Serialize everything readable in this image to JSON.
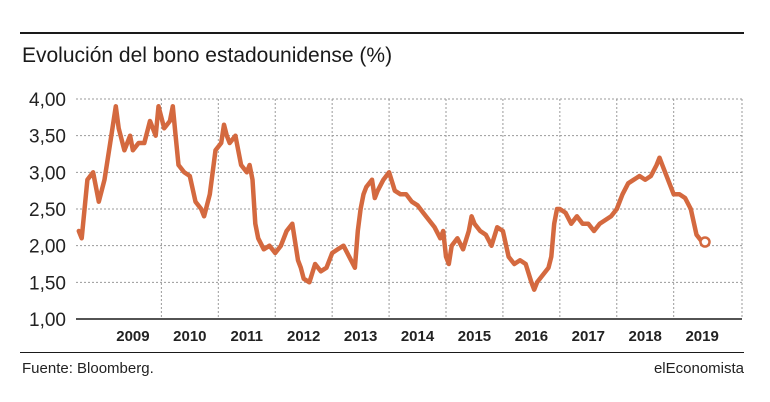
{
  "header": {
    "title": "Evolución del bono estadounidense (%)"
  },
  "footer": {
    "source": "Fuente: Bloomberg.",
    "brand": "elEconomista"
  },
  "colors": {
    "line": "#d4693f",
    "grid": "#9a9a9a",
    "axis": "#1a1a1a",
    "text": "#222222",
    "marker_fill": "#ffffff"
  },
  "chart_data": {
    "type": "line",
    "title": "Evolución del bono estadounidense (%)",
    "xlabel": "",
    "ylabel": "",
    "ylim": [
      1.0,
      4.0
    ],
    "xlim": [
      2008.5,
      2020.2
    ],
    "y_ticks": [
      1.0,
      1.5,
      2.0,
      2.5,
      3.0,
      3.5,
      4.0
    ],
    "y_tick_labels": [
      "1,00",
      "1,50",
      "2,00",
      "2,50",
      "3,00",
      "3,50",
      "4,00"
    ],
    "x_tick_labels": [
      "2009",
      "2010",
      "2011",
      "2012",
      "2013",
      "2014",
      "2015",
      "2016",
      "2017",
      "2018",
      "2019"
    ],
    "grid": true,
    "series": [
      {
        "x": [
          2008.55,
          2008.6,
          2008.7,
          2008.8,
          2008.9,
          2009.0,
          2009.1,
          2009.2,
          2009.25,
          2009.35,
          2009.45,
          2009.5,
          2009.6,
          2009.7,
          2009.8,
          2009.9,
          2009.95,
          2010.05,
          2010.15,
          2010.2,
          2010.25,
          2010.3,
          2010.4,
          2010.5,
          2010.6,
          2010.7,
          2010.75,
          2010.85,
          2010.95,
          2011.05,
          2011.1,
          2011.15,
          2011.2,
          2011.3,
          2011.4,
          2011.5,
          2011.55,
          2011.6,
          2011.65,
          2011.7,
          2011.8,
          2011.9,
          2012.0,
          2012.1,
          2012.2,
          2012.3,
          2012.4,
          2012.45,
          2012.5,
          2012.6,
          2012.7,
          2012.8,
          2012.9,
          2013.0,
          2013.1,
          2013.2,
          2013.3,
          2013.4,
          2013.45,
          2013.5,
          2013.55,
          2013.6,
          2013.7,
          2013.75,
          2013.8,
          2013.9,
          2014.0,
          2014.1,
          2014.2,
          2014.3,
          2014.4,
          2014.5,
          2014.6,
          2014.7,
          2014.8,
          2014.9,
          2014.95,
          2015.0,
          2015.05,
          2015.1,
          2015.2,
          2015.3,
          2015.4,
          2015.45,
          2015.5,
          2015.6,
          2015.7,
          2015.8,
          2015.9,
          2016.0,
          2016.1,
          2016.2,
          2016.3,
          2016.4,
          2016.5,
          2016.55,
          2016.6,
          2016.7,
          2016.8,
          2016.85,
          2016.9,
          2016.95,
          2017.0,
          2017.1,
          2017.2,
          2017.3,
          2017.4,
          2017.5,
          2017.6,
          2017.7,
          2017.8,
          2017.9,
          2018.0,
          2018.1,
          2018.2,
          2018.3,
          2018.4,
          2018.5,
          2018.6,
          2018.7,
          2018.75,
          2018.8,
          2018.9,
          2019.0,
          2019.1,
          2019.2,
          2019.3,
          2019.4,
          2019.5
        ],
        "values": [
          2.2,
          2.1,
          2.9,
          3.0,
          2.6,
          2.9,
          3.4,
          3.9,
          3.6,
          3.3,
          3.5,
          3.3,
          3.4,
          3.4,
          3.7,
          3.5,
          3.9,
          3.6,
          3.7,
          3.9,
          3.5,
          3.1,
          3.0,
          2.95,
          2.6,
          2.5,
          2.4,
          2.7,
          3.3,
          3.4,
          3.65,
          3.5,
          3.4,
          3.5,
          3.1,
          3.0,
          3.1,
          2.9,
          2.3,
          2.1,
          1.95,
          2.0,
          1.9,
          2.0,
          2.2,
          2.3,
          1.8,
          1.7,
          1.55,
          1.5,
          1.75,
          1.65,
          1.7,
          1.9,
          1.95,
          2.0,
          1.85,
          1.7,
          2.2,
          2.5,
          2.7,
          2.8,
          2.9,
          2.65,
          2.75,
          2.9,
          3.0,
          2.75,
          2.7,
          2.7,
          2.6,
          2.55,
          2.45,
          2.35,
          2.25,
          2.1,
          2.2,
          1.85,
          1.75,
          2.0,
          2.1,
          1.95,
          2.2,
          2.4,
          2.3,
          2.2,
          2.15,
          2.0,
          2.25,
          2.2,
          1.85,
          1.75,
          1.8,
          1.75,
          1.5,
          1.4,
          1.5,
          1.6,
          1.7,
          1.85,
          2.3,
          2.5,
          2.5,
          2.45,
          2.3,
          2.4,
          2.3,
          2.3,
          2.2,
          2.3,
          2.35,
          2.4,
          2.5,
          2.7,
          2.85,
          2.9,
          2.95,
          2.9,
          2.95,
          3.1,
          3.2,
          3.1,
          2.9,
          2.7,
          2.7,
          2.65,
          2.5,
          2.15,
          2.05
        ]
      }
    ],
    "end_marker": {
      "x": 2019.55,
      "y": 2.05
    }
  }
}
